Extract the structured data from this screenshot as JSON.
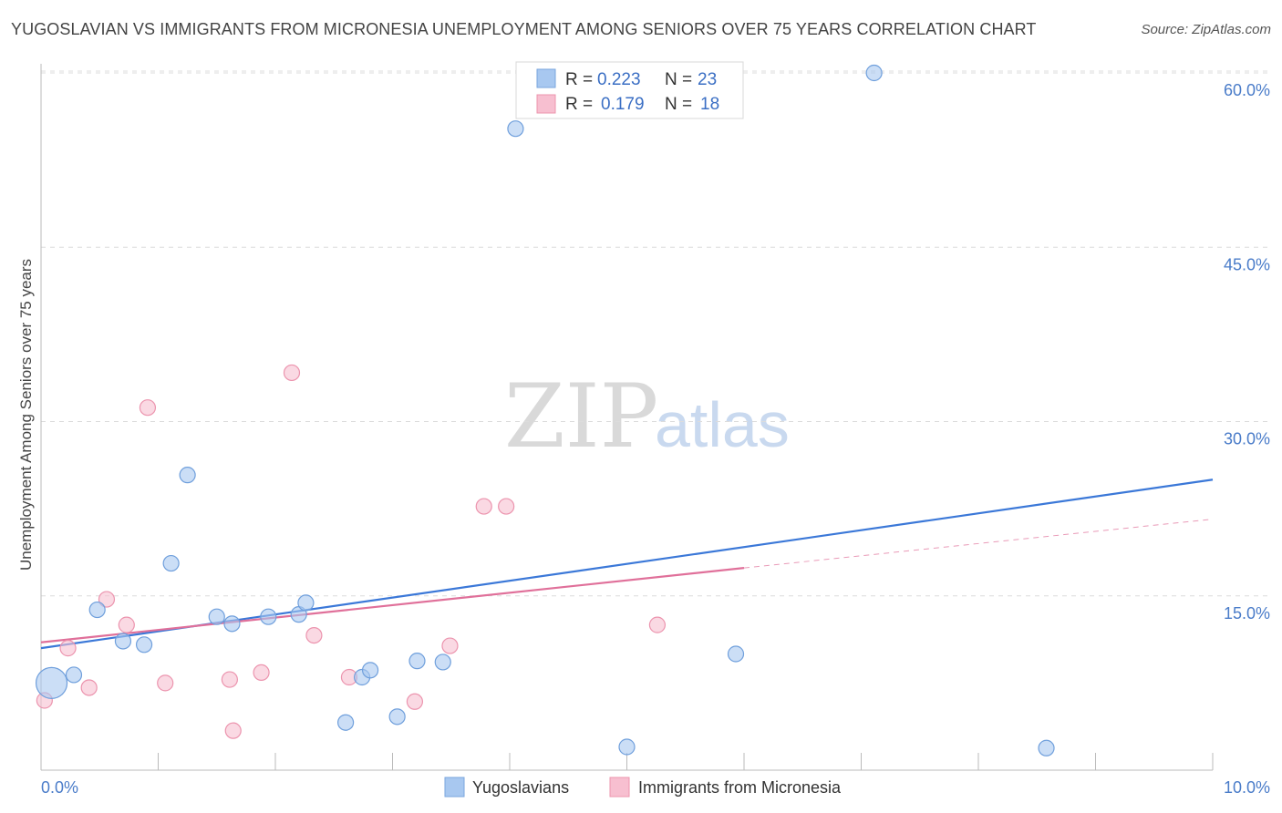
{
  "title": "YUGOSLAVIAN VS IMMIGRANTS FROM MICRONESIA UNEMPLOYMENT AMONG SENIORS OVER 75 YEARS CORRELATION CHART",
  "source": "Source: ZipAtlas.com",
  "watermark": {
    "zip": "ZIP",
    "atlas": "atlas"
  },
  "chart_data": {
    "type": "scatter",
    "xlabel": "",
    "ylabel": "Unemployment Among Seniors over 75 years",
    "xlim": [
      0,
      10
    ],
    "ylim": [
      0,
      62
    ],
    "x_tick_labels": [
      {
        "value": 0,
        "label": "0.0%"
      },
      {
        "value": 10,
        "label": "10.0%"
      }
    ],
    "y_tick_labels": [
      {
        "value": 15,
        "label": "15.0%"
      },
      {
        "value": 30,
        "label": "30.0%"
      },
      {
        "value": 45,
        "label": "45.0%"
      },
      {
        "value": 60,
        "label": "60.0%"
      }
    ],
    "grid": true,
    "legend": [
      {
        "name": "Yugoslavians",
        "r_label": "R =",
        "r": "0.223",
        "n_label": "N =",
        "n": "23",
        "color": "#a8c8f0",
        "stroke": "#7aa6de"
      },
      {
        "name": "Immigrants from Micronesia",
        "r_label": "R =",
        "r": "0.179",
        "n_label": "N =",
        "n": "18",
        "color": "#f7bfd0",
        "stroke": "#ec94ae"
      }
    ],
    "series": [
      {
        "name": "Yugoslavians",
        "color": "#a8c8f0",
        "stroke": "#6f9fdc",
        "line_color": "#3b78d8",
        "trend": {
          "x0": 0,
          "y0": 10.5,
          "x1": 10,
          "y1": 25.0
        },
        "points": [
          {
            "x": 0.09,
            "y": 7.5,
            "big": true
          },
          {
            "x": 0.28,
            "y": 8.2
          },
          {
            "x": 0.48,
            "y": 13.8
          },
          {
            "x": 0.7,
            "y": 11.1
          },
          {
            "x": 0.88,
            "y": 10.8
          },
          {
            "x": 1.11,
            "y": 17.8
          },
          {
            "x": 1.25,
            "y": 25.4
          },
          {
            "x": 1.5,
            "y": 13.2
          },
          {
            "x": 1.63,
            "y": 12.6
          },
          {
            "x": 1.94,
            "y": 13.2
          },
          {
            "x": 2.2,
            "y": 13.4
          },
          {
            "x": 2.26,
            "y": 14.4
          },
          {
            "x": 2.6,
            "y": 4.1
          },
          {
            "x": 2.74,
            "y": 8.0
          },
          {
            "x": 2.81,
            "y": 8.6
          },
          {
            "x": 3.04,
            "y": 4.6
          },
          {
            "x": 3.21,
            "y": 9.4
          },
          {
            "x": 3.43,
            "y": 9.3
          },
          {
            "x": 4.05,
            "y": 55.2
          },
          {
            "x": 5.0,
            "y": 2.0
          },
          {
            "x": 5.93,
            "y": 10.0
          },
          {
            "x": 7.11,
            "y": 60.0
          },
          {
            "x": 8.58,
            "y": 1.9
          }
        ]
      },
      {
        "name": "Immigrants from Micronesia",
        "color": "#f7bfd0",
        "stroke": "#ec94ae",
        "line_color": "#e0709a",
        "trend": {
          "x0": 0,
          "y0": 11.0,
          "x1": 6.0,
          "y1": 17.4
        },
        "trend_dashed": {
          "x0": 6.0,
          "y0": 17.4,
          "x1": 10,
          "y1": 21.6
        },
        "points": [
          {
            "x": 0.03,
            "y": 6.0
          },
          {
            "x": 0.23,
            "y": 10.5
          },
          {
            "x": 0.41,
            "y": 7.1
          },
          {
            "x": 0.56,
            "y": 14.7
          },
          {
            "x": 0.73,
            "y": 12.5
          },
          {
            "x": 1.06,
            "y": 7.5
          },
          {
            "x": 0.91,
            "y": 31.2
          },
          {
            "x": 1.61,
            "y": 7.8
          },
          {
            "x": 1.64,
            "y": 3.4
          },
          {
            "x": 1.88,
            "y": 8.4
          },
          {
            "x": 2.14,
            "y": 34.2
          },
          {
            "x": 2.33,
            "y": 11.6
          },
          {
            "x": 2.63,
            "y": 8.0
          },
          {
            "x": 3.19,
            "y": 5.9
          },
          {
            "x": 3.49,
            "y": 10.7
          },
          {
            "x": 3.78,
            "y": 22.7
          },
          {
            "x": 3.97,
            "y": 22.7
          },
          {
            "x": 5.26,
            "y": 12.5
          }
        ]
      }
    ]
  }
}
